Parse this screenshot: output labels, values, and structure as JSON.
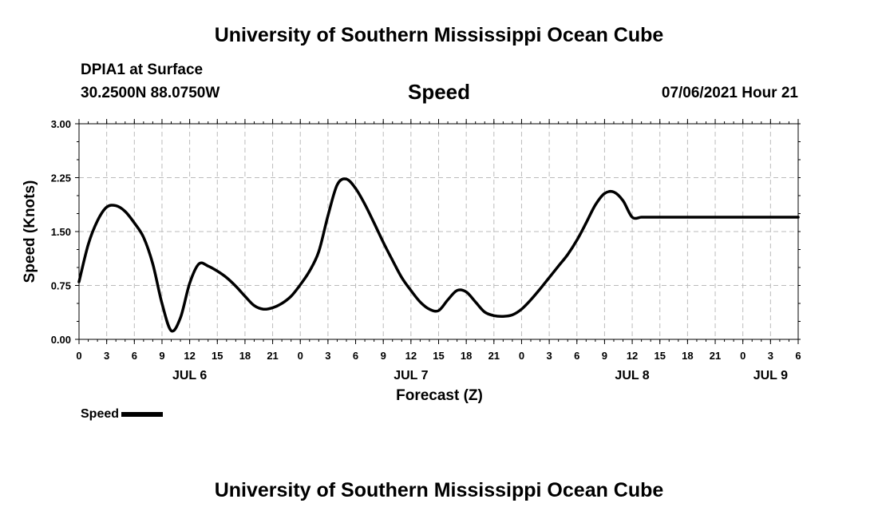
{
  "header": {
    "title_top": "University of Southern Mississippi Ocean Cube",
    "station": "DPIA1 at Surface",
    "coords": "30.2500N  88.0750W",
    "chart_title": "Speed",
    "date_label": "07/06/2021 Hour 21",
    "title_bottom": "University of Southern Mississippi Ocean Cube"
  },
  "legend": {
    "label": "Speed"
  },
  "chart_data": {
    "type": "line",
    "title": "Speed",
    "xlabel": "Forecast (Z)",
    "ylabel": "Speed (Knots)",
    "ylim": [
      0,
      3
    ],
    "xlim": [
      0,
      78
    ],
    "grid": true,
    "legend_position": "bottom-left",
    "y_ticks": [
      "0.00",
      "0.75",
      "1.50",
      "2.25",
      "3.00"
    ],
    "x_tick_labels": [
      "0",
      "3",
      "6",
      "9",
      "12",
      "15",
      "18",
      "21",
      "0",
      "3",
      "6",
      "9",
      "12",
      "15",
      "18",
      "21",
      "0",
      "3",
      "6",
      "9",
      "12",
      "15",
      "18",
      "21",
      "0",
      "3",
      "6"
    ],
    "day_labels": [
      {
        "label": "JUL 6",
        "hour": 12
      },
      {
        "label": "JUL 7",
        "hour": 36
      },
      {
        "label": "JUL 8",
        "hour": 60
      },
      {
        "label": "JUL 9",
        "hour": 75
      }
    ],
    "series": [
      {
        "name": "Speed",
        "color": "#000000",
        "x": [
          0,
          1,
          2,
          3,
          4,
          5,
          6,
          7,
          8,
          9,
          10,
          11,
          12,
          13,
          14,
          15,
          16,
          17,
          18,
          19,
          20,
          21,
          22,
          23,
          24,
          25,
          26,
          27,
          28,
          29,
          30,
          31,
          32,
          33,
          34,
          35,
          36,
          37,
          38,
          39,
          40,
          41,
          42,
          43,
          44,
          45,
          46,
          47,
          48,
          49,
          50,
          51,
          52,
          53,
          54,
          55,
          56,
          57,
          58,
          59,
          60,
          61,
          62,
          63,
          64,
          65,
          66,
          67,
          68,
          69,
          70,
          71,
          72,
          73,
          74,
          75,
          76,
          77,
          78
        ],
        "values": [
          0.8,
          1.32,
          1.65,
          1.84,
          1.86,
          1.78,
          1.62,
          1.42,
          1.05,
          0.5,
          0.12,
          0.3,
          0.78,
          1.05,
          1.02,
          0.95,
          0.86,
          0.74,
          0.6,
          0.47,
          0.42,
          0.44,
          0.5,
          0.6,
          0.76,
          0.95,
          1.22,
          1.72,
          2.15,
          2.23,
          2.1,
          1.88,
          1.62,
          1.35,
          1.1,
          0.86,
          0.68,
          0.52,
          0.42,
          0.4,
          0.55,
          0.68,
          0.66,
          0.52,
          0.38,
          0.33,
          0.32,
          0.34,
          0.42,
          0.55,
          0.7,
          0.86,
          1.02,
          1.18,
          1.38,
          1.62,
          1.87,
          2.03,
          2.05,
          1.93,
          1.7,
          1.7,
          1.7,
          1.7,
          1.7,
          1.7,
          1.7,
          1.7,
          1.7,
          1.7,
          1.7,
          1.7,
          1.7,
          1.7,
          1.7,
          1.7,
          1.7,
          1.7,
          1.7
        ]
      }
    ]
  }
}
